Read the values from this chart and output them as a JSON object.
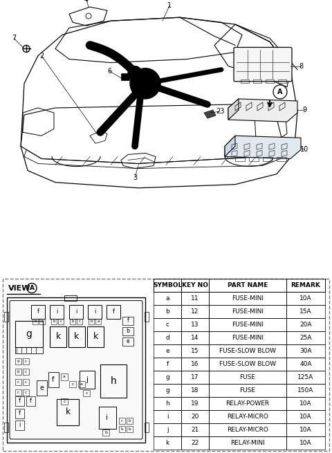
{
  "bg_color": "#ffffff",
  "table_headers": [
    "SYMBOL",
    "KEY NO",
    "PART NAME",
    "REMARK"
  ],
  "table_rows": [
    [
      "a",
      "11",
      "FUSE-MINI",
      "10A"
    ],
    [
      "b",
      "12",
      "FUSE-MINI",
      "15A"
    ],
    [
      "c",
      "13",
      "FUSE-MINI",
      "20A"
    ],
    [
      "d",
      "14",
      "FUSE-MINI",
      "25A"
    ],
    [
      "e",
      "15",
      "FUSE-SLOW BLOW",
      "30A"
    ],
    [
      "f",
      "16",
      "FUSE-SLOW BLOW",
      "40A"
    ],
    [
      "g",
      "17",
      "FUSE",
      "125A"
    ],
    [
      "g",
      "18",
      "FUSE",
      "150A"
    ],
    [
      "h",
      "19",
      "RELAY-POWER",
      "10A"
    ],
    [
      "i",
      "20",
      "RELAY-MICRO",
      "10A"
    ],
    [
      "j",
      "21",
      "RELAY-MICRO",
      "10A"
    ],
    [
      "k",
      "22",
      "RELAY-MINI",
      "10A"
    ]
  ]
}
